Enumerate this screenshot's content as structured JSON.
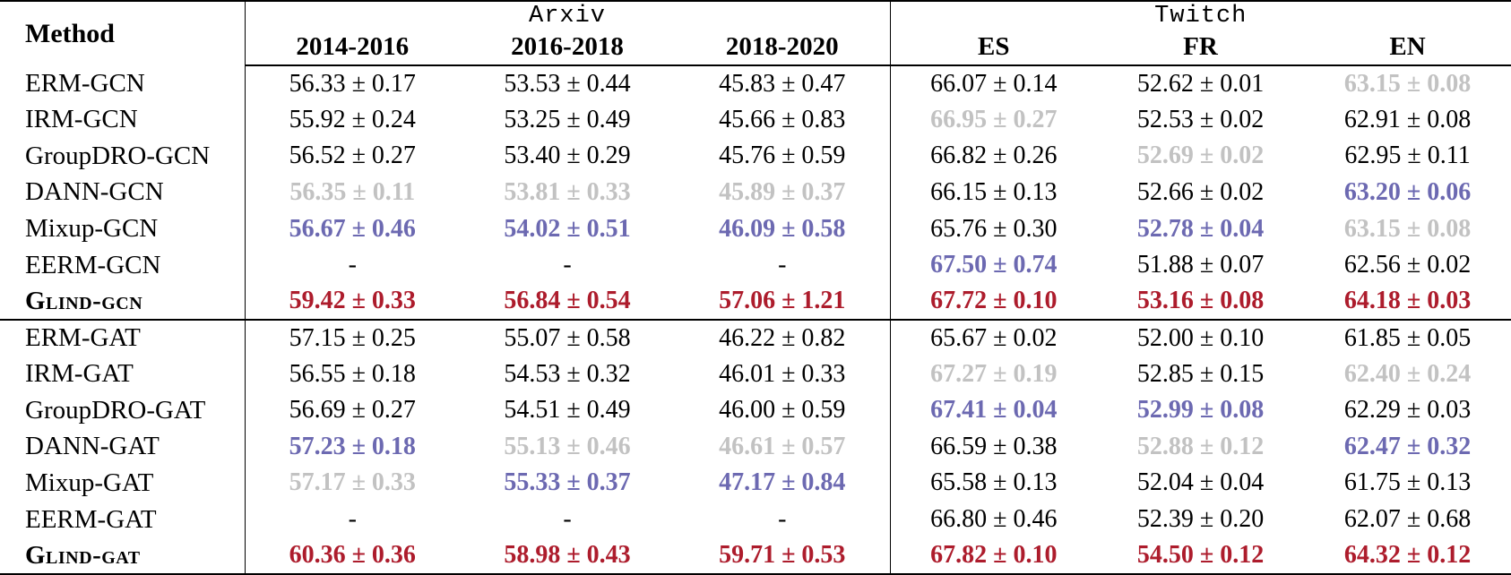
{
  "table": {
    "method_header": "Method",
    "groups": [
      {
        "label": "Arxiv",
        "columns": [
          "2014-2016",
          "2016-2018",
          "2018-2020"
        ]
      },
      {
        "label": "Twitch",
        "columns": [
          "ES",
          "FR",
          "EN"
        ]
      }
    ],
    "colors": {
      "normal": "#000000",
      "muted": "#c2c2c2",
      "runnerup": "#6c69b1",
      "best": "#ad1c2c"
    },
    "rows": [
      {
        "method": "ERM-GCN",
        "smallcaps": false,
        "section_end": false,
        "cells": [
          {
            "v": "56.33 ± 0.17",
            "s": "normal"
          },
          {
            "v": "53.53 ± 0.44",
            "s": "normal"
          },
          {
            "v": "45.83 ± 0.47",
            "s": "normal"
          },
          {
            "v": "66.07 ± 0.14",
            "s": "normal"
          },
          {
            "v": "52.62 ± 0.01",
            "s": "normal"
          },
          {
            "v": "63.15 ± 0.08",
            "s": "muted"
          }
        ]
      },
      {
        "method": "IRM-GCN",
        "smallcaps": false,
        "section_end": false,
        "cells": [
          {
            "v": "55.92 ± 0.24",
            "s": "normal"
          },
          {
            "v": "53.25 ± 0.49",
            "s": "normal"
          },
          {
            "v": "45.66 ± 0.83",
            "s": "normal"
          },
          {
            "v": "66.95 ± 0.27",
            "s": "muted"
          },
          {
            "v": "52.53 ± 0.02",
            "s": "normal"
          },
          {
            "v": "62.91 ± 0.08",
            "s": "normal"
          }
        ]
      },
      {
        "method": "GroupDRO-GCN",
        "smallcaps": false,
        "section_end": false,
        "cells": [
          {
            "v": "56.52 ± 0.27",
            "s": "normal"
          },
          {
            "v": "53.40 ± 0.29",
            "s": "normal"
          },
          {
            "v": "45.76 ± 0.59",
            "s": "normal"
          },
          {
            "v": "66.82 ± 0.26",
            "s": "normal"
          },
          {
            "v": "52.69 ± 0.02",
            "s": "muted"
          },
          {
            "v": "62.95 ± 0.11",
            "s": "normal"
          }
        ]
      },
      {
        "method": "DANN-GCN",
        "smallcaps": false,
        "section_end": false,
        "cells": [
          {
            "v": "56.35 ± 0.11",
            "s": "muted"
          },
          {
            "v": "53.81 ± 0.33",
            "s": "muted"
          },
          {
            "v": "45.89 ± 0.37",
            "s": "muted"
          },
          {
            "v": "66.15 ± 0.13",
            "s": "normal"
          },
          {
            "v": "52.66 ± 0.02",
            "s": "normal"
          },
          {
            "v": "63.20 ± 0.06",
            "s": "runnerup"
          }
        ]
      },
      {
        "method": "Mixup-GCN",
        "smallcaps": false,
        "section_end": false,
        "cells": [
          {
            "v": "56.67 ± 0.46",
            "s": "runnerup"
          },
          {
            "v": "54.02 ± 0.51",
            "s": "runnerup"
          },
          {
            "v": "46.09 ± 0.58",
            "s": "runnerup"
          },
          {
            "v": "65.76 ± 0.30",
            "s": "normal"
          },
          {
            "v": "52.78 ± 0.04",
            "s": "runnerup"
          },
          {
            "v": "63.15 ± 0.08",
            "s": "muted"
          }
        ]
      },
      {
        "method": "EERM-GCN",
        "smallcaps": false,
        "section_end": false,
        "cells": [
          {
            "v": "-",
            "s": "normal"
          },
          {
            "v": "-",
            "s": "normal"
          },
          {
            "v": "-",
            "s": "normal"
          },
          {
            "v": "67.50 ± 0.74",
            "s": "runnerup"
          },
          {
            "v": "51.88 ± 0.07",
            "s": "normal"
          },
          {
            "v": "62.56 ± 0.02",
            "s": "normal"
          }
        ]
      },
      {
        "method": "Glind-gcn",
        "smallcaps": true,
        "section_end": true,
        "cells": [
          {
            "v": "59.42 ± 0.33",
            "s": "best"
          },
          {
            "v": "56.84 ± 0.54",
            "s": "best"
          },
          {
            "v": "57.06 ± 1.21",
            "s": "best"
          },
          {
            "v": "67.72 ± 0.10",
            "s": "best"
          },
          {
            "v": "53.16 ± 0.08",
            "s": "best"
          },
          {
            "v": "64.18 ± 0.03",
            "s": "best"
          }
        ]
      },
      {
        "method": "ERM-GAT",
        "smallcaps": false,
        "section_end": false,
        "cells": [
          {
            "v": "57.15 ± 0.25",
            "s": "normal"
          },
          {
            "v": "55.07 ± 0.58",
            "s": "normal"
          },
          {
            "v": "46.22 ± 0.82",
            "s": "normal"
          },
          {
            "v": "65.67 ± 0.02",
            "s": "normal"
          },
          {
            "v": "52.00 ± 0.10",
            "s": "normal"
          },
          {
            "v": "61.85 ± 0.05",
            "s": "normal"
          }
        ]
      },
      {
        "method": "IRM-GAT",
        "smallcaps": false,
        "section_end": false,
        "cells": [
          {
            "v": "56.55 ± 0.18",
            "s": "normal"
          },
          {
            "v": "54.53 ± 0.32",
            "s": "normal"
          },
          {
            "v": "46.01 ± 0.33",
            "s": "normal"
          },
          {
            "v": "67.27 ± 0.19",
            "s": "muted"
          },
          {
            "v": "52.85 ± 0.15",
            "s": "normal"
          },
          {
            "v": "62.40 ± 0.24",
            "s": "muted"
          }
        ]
      },
      {
        "method": "GroupDRO-GAT",
        "smallcaps": false,
        "section_end": false,
        "cells": [
          {
            "v": "56.69 ± 0.27",
            "s": "normal"
          },
          {
            "v": "54.51 ± 0.49",
            "s": "normal"
          },
          {
            "v": "46.00 ± 0.59",
            "s": "normal"
          },
          {
            "v": "67.41 ± 0.04",
            "s": "runnerup"
          },
          {
            "v": "52.99 ± 0.08",
            "s": "runnerup"
          },
          {
            "v": "62.29 ± 0.03",
            "s": "normal"
          }
        ]
      },
      {
        "method": "DANN-GAT",
        "smallcaps": false,
        "section_end": false,
        "cells": [
          {
            "v": "57.23 ± 0.18",
            "s": "runnerup"
          },
          {
            "v": "55.13 ± 0.46",
            "s": "muted"
          },
          {
            "v": "46.61 ± 0.57",
            "s": "muted"
          },
          {
            "v": "66.59 ± 0.38",
            "s": "normal"
          },
          {
            "v": "52.88 ± 0.12",
            "s": "muted"
          },
          {
            "v": "62.47 ± 0.32",
            "s": "runnerup"
          }
        ]
      },
      {
        "method": "Mixup-GAT",
        "smallcaps": false,
        "section_end": false,
        "cells": [
          {
            "v": "57.17 ± 0.33",
            "s": "muted"
          },
          {
            "v": "55.33 ± 0.37",
            "s": "runnerup"
          },
          {
            "v": "47.17 ± 0.84",
            "s": "runnerup"
          },
          {
            "v": "65.58 ± 0.13",
            "s": "normal"
          },
          {
            "v": "52.04 ± 0.04",
            "s": "normal"
          },
          {
            "v": "61.75 ± 0.13",
            "s": "normal"
          }
        ]
      },
      {
        "method": "EERM-GAT",
        "smallcaps": false,
        "section_end": false,
        "cells": [
          {
            "v": "-",
            "s": "normal"
          },
          {
            "v": "-",
            "s": "normal"
          },
          {
            "v": "-",
            "s": "normal"
          },
          {
            "v": "66.80 ± 0.46",
            "s": "normal"
          },
          {
            "v": "52.39 ± 0.20",
            "s": "normal"
          },
          {
            "v": "62.07 ± 0.68",
            "s": "normal"
          }
        ]
      },
      {
        "method": "Glind-gat",
        "smallcaps": true,
        "section_end": false,
        "cells": [
          {
            "v": "60.36 ± 0.36",
            "s": "best"
          },
          {
            "v": "58.98 ± 0.43",
            "s": "best"
          },
          {
            "v": "59.71 ± 0.53",
            "s": "best"
          },
          {
            "v": "67.82 ± 0.10",
            "s": "best"
          },
          {
            "v": "54.50 ± 0.12",
            "s": "best"
          },
          {
            "v": "64.32 ± 0.12",
            "s": "best"
          }
        ]
      }
    ]
  }
}
